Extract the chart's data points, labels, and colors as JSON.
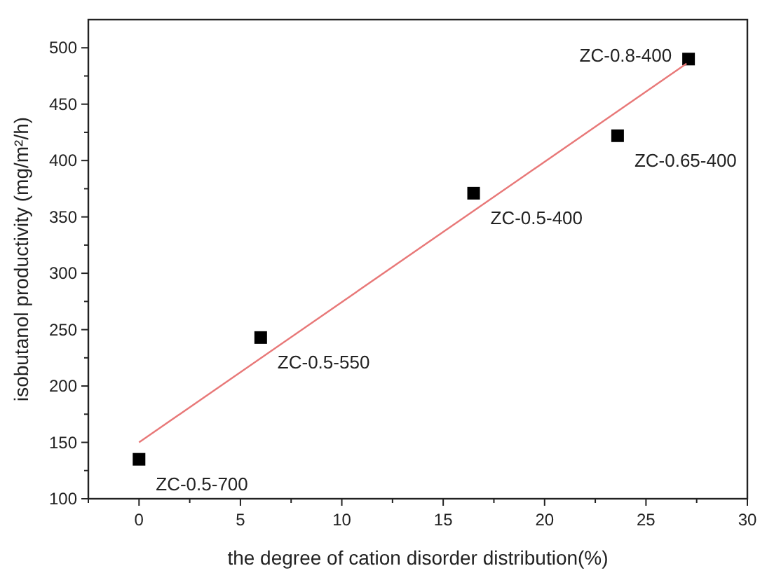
{
  "chart_data": {
    "type": "scatter",
    "xlabel": "the degree of cation disorder distribution(%)",
    "ylabel": "isobutanol productivity (mg/m²/h)",
    "xlim": [
      -2.5,
      30
    ],
    "ylim": [
      100,
      525
    ],
    "xticks": [
      {
        "value": -2.5,
        "label": null
      },
      0,
      {
        "value": 2.5,
        "label": null
      },
      5,
      {
        "value": 7.5,
        "label": null
      },
      10,
      {
        "value": 12.5,
        "label": null
      },
      15,
      {
        "value": 17.5,
        "label": null
      },
      20,
      {
        "value": 22.5,
        "label": null
      },
      25,
      {
        "value": 27.5,
        "label": null
      },
      30
    ],
    "yticks": [
      100,
      {
        "value": 125,
        "label": null
      },
      150,
      {
        "value": 175,
        "label": null
      },
      200,
      {
        "value": 225,
        "label": null
      },
      250,
      {
        "value": 275,
        "label": null
      },
      300,
      {
        "value": 325,
        "label": null
      },
      350,
      {
        "value": 375,
        "label": null
      },
      400,
      {
        "value": 425,
        "label": null
      },
      450,
      {
        "value": 475,
        "label": null
      },
      500
    ],
    "marker": "square",
    "grid": false,
    "series": [
      {
        "color": "#000000",
        "x": [
          0,
          6,
          16.5,
          23.6,
          27.1
        ],
        "values": [
          135,
          243,
          371,
          422,
          490
        ]
      },
      {
        "type": "line",
        "marker": "none",
        "color": "#e87878",
        "x": [
          0,
          27
        ],
        "values": [
          150,
          486
        ]
      }
    ],
    "annotations": [
      {
        "text": "ZC-0.5-700",
        "x": 0,
        "y": 135
      },
      {
        "text": "ZC-0.5-550",
        "x": 6,
        "y": 243
      },
      {
        "text": "ZC-0.5-400",
        "x": 16.5,
        "y": 371
      },
      {
        "text": "ZC-0.65-400",
        "x": 23.6,
        "y": 422
      },
      {
        "text": "ZC-0.8-400",
        "x": 27.1,
        "y": 490
      }
    ]
  }
}
